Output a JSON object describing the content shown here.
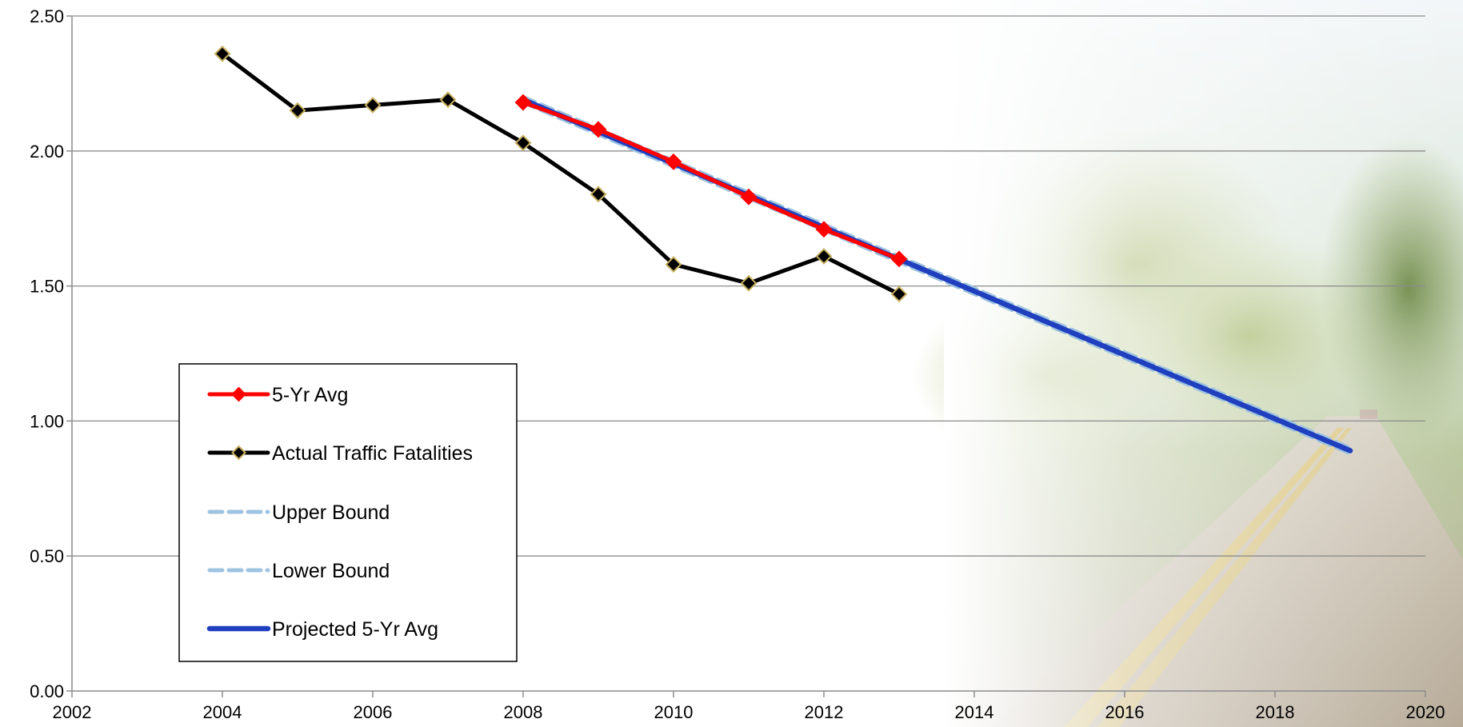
{
  "chart_data": {
    "type": "line",
    "title": "",
    "xlabel": "",
    "ylabel": "",
    "xlim": [
      2002,
      2020
    ],
    "ylim": [
      0,
      2.5
    ],
    "x_ticks": [
      {
        "value": 2002,
        "label": "2002"
      },
      {
        "value": 2004,
        "label": "2004"
      },
      {
        "value": 2006,
        "label": "2006"
      },
      {
        "value": 2008,
        "label": "2008"
      },
      {
        "value": 2010,
        "label": "2010"
      },
      {
        "value": 2012,
        "label": "2012"
      },
      {
        "value": 2014,
        "label": "2014"
      },
      {
        "value": 2016,
        "label": "2016"
      },
      {
        "value": 2018,
        "label": "2018"
      },
      {
        "value": 2020,
        "label": "2020"
      }
    ],
    "y_ticks": [
      {
        "value": 0,
        "label": "0.00"
      },
      {
        "value": 0.5,
        "label": "0.50"
      },
      {
        "value": 1,
        "label": "1.00"
      },
      {
        "value": 1.5,
        "label": "1.50"
      },
      {
        "value": 2,
        "label": "2.00"
      },
      {
        "value": 2.5,
        "label": "2.50"
      }
    ],
    "grid": "horizontal",
    "legend_position": "bottom-left",
    "series": [
      {
        "name": "5-Yr Avg",
        "color": "#ff0000",
        "style": "solid",
        "marker": "diamond",
        "points": [
          [
            2008,
            2.18
          ],
          [
            2009,
            2.08
          ],
          [
            2010,
            1.96
          ],
          [
            2011,
            1.83
          ],
          [
            2012,
            1.71
          ],
          [
            2013,
            1.6
          ]
        ]
      },
      {
        "name": "Actual Traffic Fatalities",
        "color": "#000000",
        "marker_edge": "#c8b060",
        "style": "solid",
        "marker": "diamond",
        "points": [
          [
            2004,
            2.36
          ],
          [
            2005,
            2.15
          ],
          [
            2006,
            2.17
          ],
          [
            2007,
            2.19
          ],
          [
            2008,
            2.03
          ],
          [
            2009,
            1.84
          ],
          [
            2010,
            1.58
          ],
          [
            2011,
            1.51
          ],
          [
            2012,
            1.61
          ],
          [
            2013,
            1.47
          ]
        ]
      },
      {
        "name": "Upper Bound",
        "color": "#9ec3e0",
        "style": "dashed",
        "marker": "none",
        "points": [
          [
            2008,
            2.2
          ],
          [
            2019,
            0.9
          ]
        ]
      },
      {
        "name": "Lower Bound",
        "color": "#9ec3e0",
        "style": "dashed",
        "marker": "none",
        "points": [
          [
            2008,
            2.18
          ],
          [
            2019,
            0.88
          ]
        ]
      },
      {
        "name": "Projected 5-Yr Avg",
        "color": "#1f3fbf",
        "style": "solid",
        "marker": "none",
        "points": [
          [
            2008,
            2.19
          ],
          [
            2019,
            0.89
          ]
        ]
      }
    ]
  }
}
